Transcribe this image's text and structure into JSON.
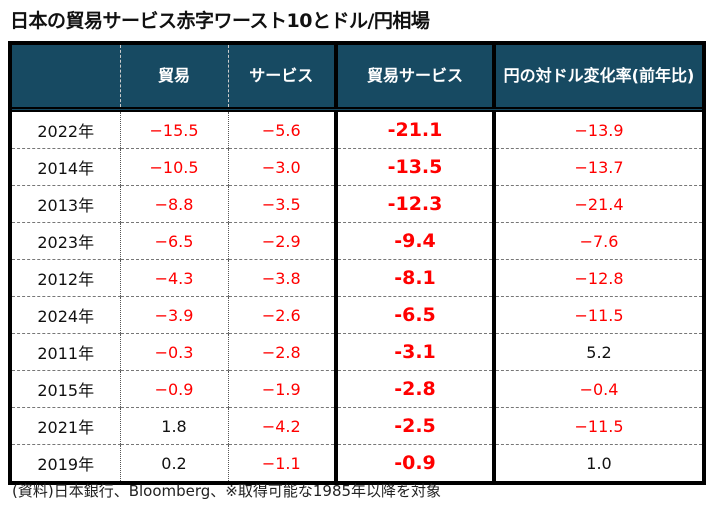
{
  "title": "日本の貿易サービス赤字ワースト10とドル/円相場",
  "headers": [
    "",
    "貿易",
    "サービス",
    "貿易サービス",
    "円の対ドル変化率(前年比)"
  ],
  "rows": [
    {
      "year": "2022年",
      "trade": "−15.5",
      "service": "−5.6",
      "total": "-21.1",
      "yen": "−13.9"
    },
    {
      "year": "2014年",
      "trade": "−10.5",
      "service": "−3.0",
      "total": "-13.5",
      "yen": "−13.7"
    },
    {
      "year": "2013年",
      "trade": "−8.8",
      "service": "−3.5",
      "total": "-12.3",
      "yen": "−21.4"
    },
    {
      "year": "2023年",
      "trade": "−6.5",
      "service": "−2.9",
      "total": "-9.4",
      "yen": "−7.6"
    },
    {
      "year": "2012年",
      "trade": "−4.3",
      "service": "−3.8",
      "total": "-8.1",
      "yen": "−12.8"
    },
    {
      "year": "2024年",
      "trade": "−3.9",
      "service": "−2.6",
      "total": "-6.5",
      "yen": "−11.5"
    },
    {
      "year": "2011年",
      "trade": "−0.3",
      "service": "−2.8",
      "total": "-3.1",
      "yen": "5.2"
    },
    {
      "year": "2015年",
      "trade": "−0.9",
      "service": "−1.9",
      "total": "-2.8",
      "yen": "−0.4"
    },
    {
      "year": "2021年",
      "trade": "1.8",
      "service": "−4.2",
      "total": "-2.5",
      "yen": "−11.5"
    },
    {
      "year": "2019年",
      "trade": "0.2",
      "service": "−1.1",
      "total": "-0.9",
      "yen": "1.0"
    }
  ],
  "colors": {
    "header_bg": "#174a62",
    "negative": "#ff0000"
  },
  "footnote": "(資料)日本銀行、Bloomberg、※取得可能な1985年以降を対象"
}
